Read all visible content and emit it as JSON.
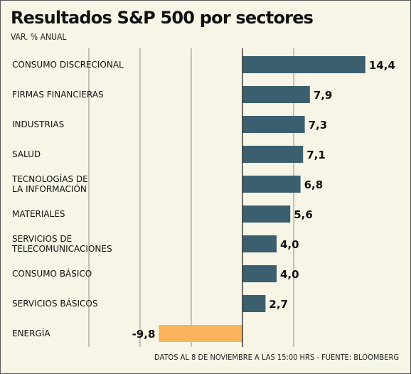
{
  "chart_data": {
    "type": "bar",
    "orientation": "horizontal",
    "title": "Resultados S&P 500 por sectores",
    "subtitle": "VAR. % ANUAL",
    "categories": [
      [
        "CONSUMO DISCRECIONAL"
      ],
      [
        "FIRMAS FINANCIERAS"
      ],
      [
        "INDUSTRIAS"
      ],
      [
        "SALUD"
      ],
      [
        "TECNOLOGÍAS DE",
        "LA INFORMACIÓN"
      ],
      [
        "MATERIALES"
      ],
      [
        "SERVICIOS DE",
        "TELECOMUNICACIONES"
      ],
      [
        "CONSUMO BÁSICO"
      ],
      [
        "SERVICIOS BÁSICOS"
      ],
      [
        "ENERGÍA"
      ]
    ],
    "values": [
      14.4,
      7.9,
      7.3,
      7.1,
      6.8,
      5.6,
      4.0,
      4.0,
      2.7,
      -9.8
    ],
    "value_labels": [
      "14,4",
      "7,9",
      "7,3",
      "7,1",
      "6,8",
      "5,6",
      "4,0",
      "4,0",
      "2,7",
      "-9,8"
    ],
    "xlim": [
      -20,
      16
    ],
    "gridlines": [
      -18,
      -12,
      -6,
      6
    ],
    "grid": true,
    "colors": {
      "positive": "#3b5f6e",
      "negative": "#f8b35b",
      "background": "#f7f5e6",
      "grid": "#444444"
    }
  },
  "footer": {
    "source": "DATOS AL 8 DE NOVIEMBRE A LAS 15:00 HRS - FUENTE: BLOOMBERG"
  }
}
